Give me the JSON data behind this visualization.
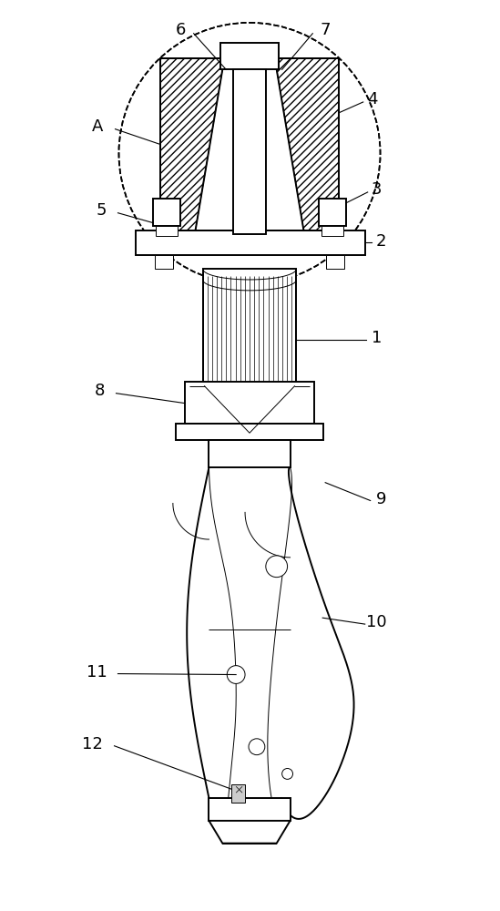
{
  "bg_color": "#ffffff",
  "line_color": "#000000",
  "figsize": [
    5.49,
    10.0
  ],
  "dpi": 100,
  "lw_main": 1.4,
  "lw_thin": 0.7,
  "lw_leader": 0.8,
  "label_fs": 13
}
